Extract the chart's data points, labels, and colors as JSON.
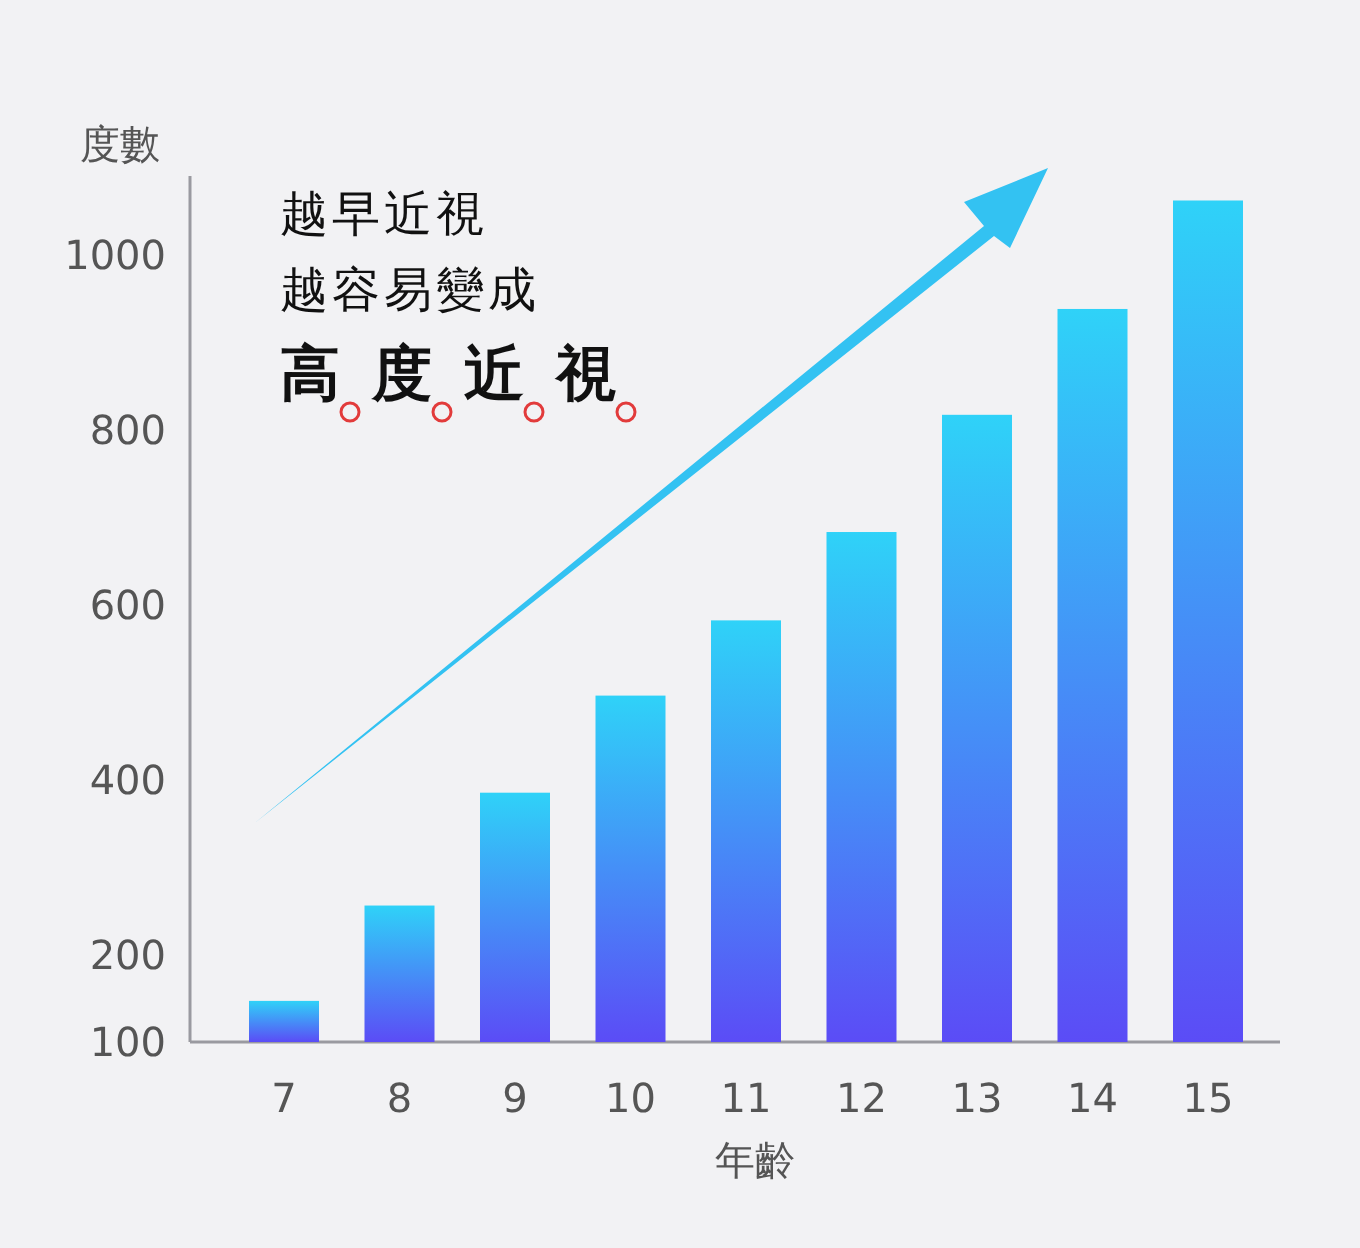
{
  "chart_data": {
    "type": "bar",
    "xlabel": "年齡",
    "ylabel": "度數",
    "categories": [
      "7",
      "8",
      "9",
      "10",
      "11",
      "12",
      "13",
      "14",
      "15"
    ],
    "values": [
      147,
      256,
      385,
      496,
      582,
      683,
      817,
      938,
      1062
    ],
    "color": "#2fd2f8",
    "ylim": [
      100,
      1090
    ],
    "yticks": [
      100,
      200,
      400,
      600,
      800,
      1000
    ],
    "annotations": [
      "越早近視",
      "越容易變成",
      "**高度近視**"
    ]
  }
}
